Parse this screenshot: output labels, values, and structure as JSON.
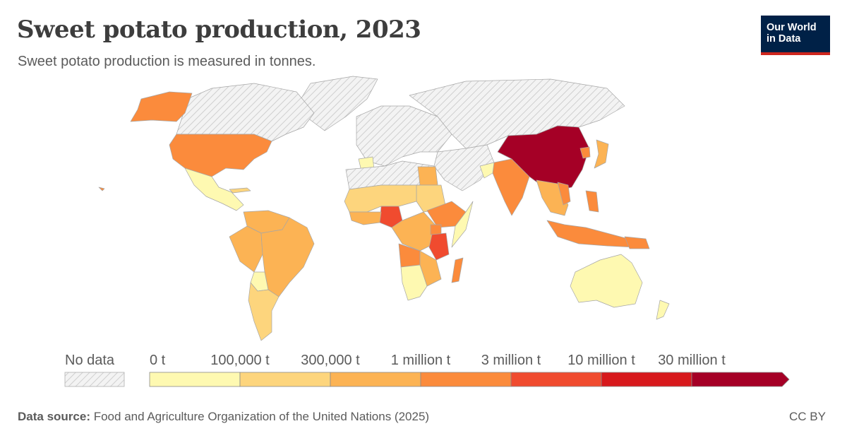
{
  "header": {
    "title": "Sweet potato production, 2023",
    "subtitle": "Sweet potato production is measured in tonnes."
  },
  "logo": {
    "line1": "Our World",
    "line2": "in Data"
  },
  "legend": {
    "no_data_label": "No data",
    "bins": [
      {
        "label": "0 t",
        "color": "#fef9b1"
      },
      {
        "label": "100,000 t",
        "color": "#fdd57d"
      },
      {
        "label": "300,000 t",
        "color": "#fcb354"
      },
      {
        "label": "1 million t",
        "color": "#fb8b3c"
      },
      {
        "label": "3 million t",
        "color": "#f04b2f"
      },
      {
        "label": "10 million t",
        "color": "#d7191c"
      },
      {
        "label": "30 million t",
        "color": "#a50026"
      }
    ]
  },
  "footer": {
    "source_label": "Data source:",
    "source_text": "Food and Agriculture Organization of the United Nations (2025)",
    "license": "CC BY"
  },
  "colors": {
    "no_data": "#f0f0f0",
    "border": "#9a9a9a"
  },
  "map_data": {
    "China": "30 million t+",
    "Nigeria": "3 million t – 10 million t",
    "Tanzania": "3 million t – 10 million t",
    "United States": "1 million t – 3 million t",
    "India": "1 million t – 3 million t",
    "Uganda": "1 million t – 3 million t",
    "Angola": "1 million t – 3 million t",
    "Ethiopia": "1 million t – 3 million t",
    "Madagascar": "1 million t – 3 million t",
    "Indonesia": "1 million t – 3 million t",
    "Brazil": "300,000 t – 1 million t",
    "Japan": "300,000 t – 1 million t",
    "Australia": "0 t – 100,000 t"
  }
}
